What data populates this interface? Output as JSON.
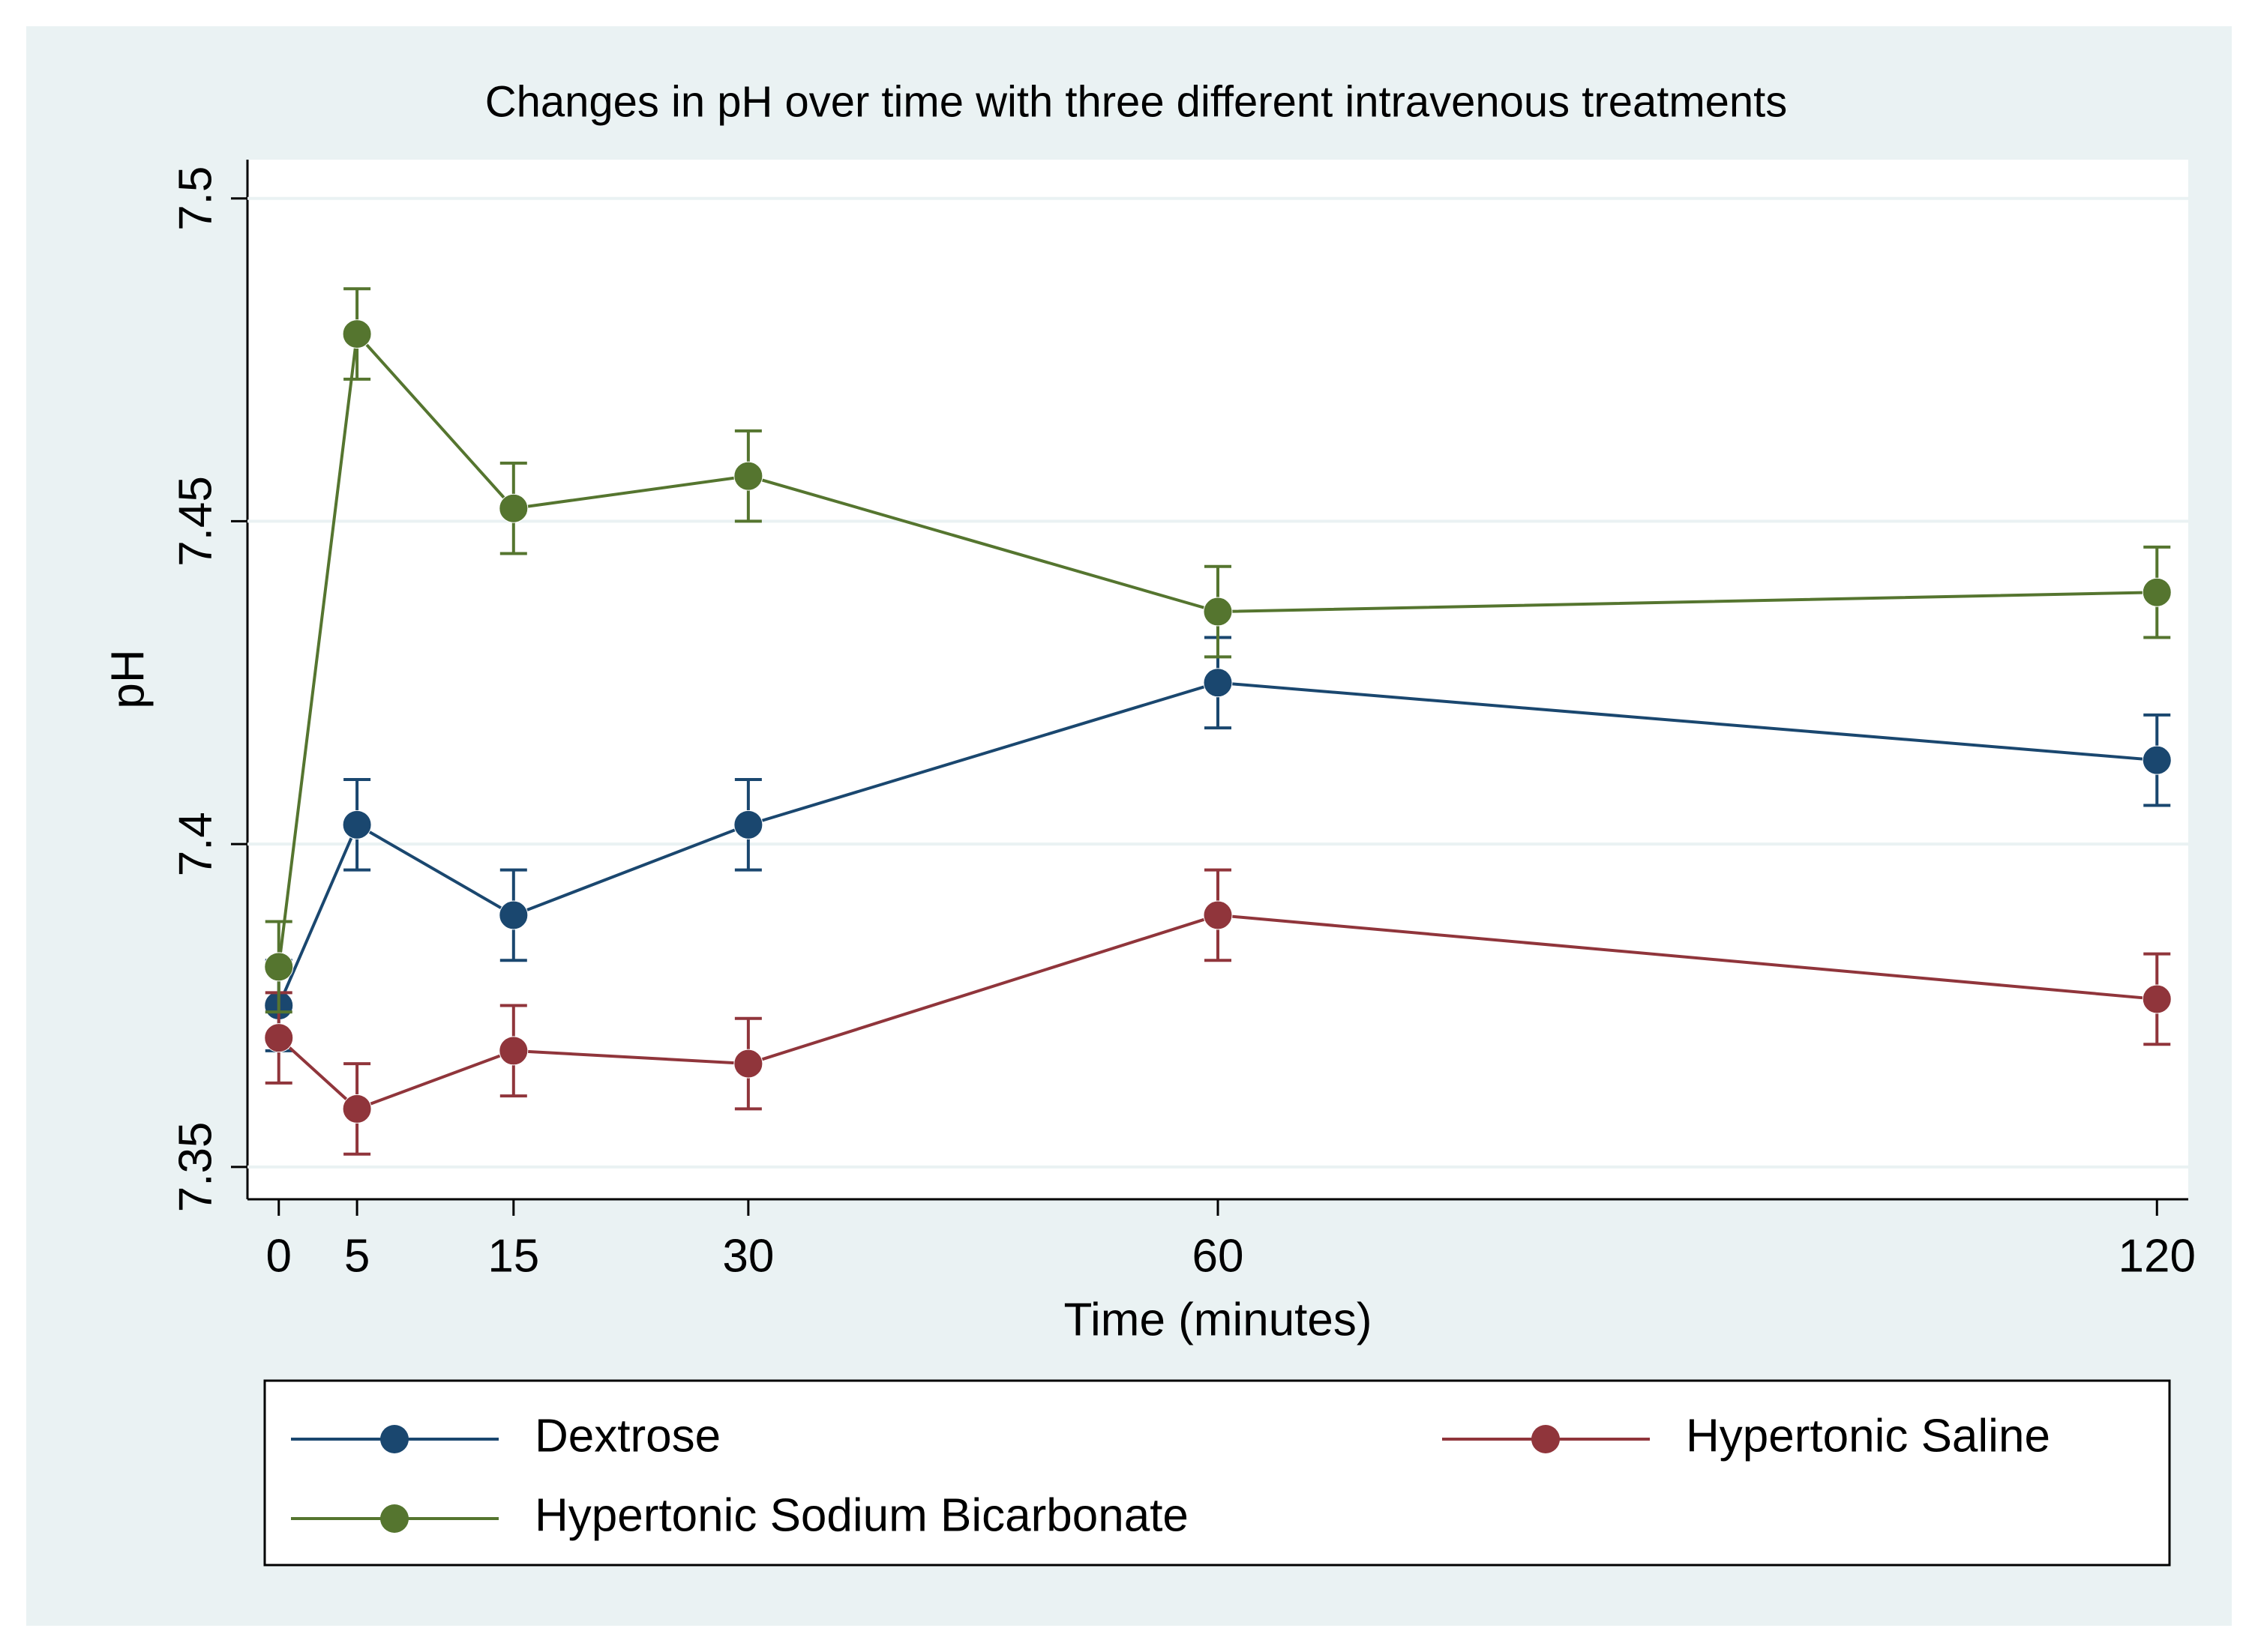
{
  "chart_data": {
    "type": "line",
    "title": "Changes in pH over time with three different intravenous treatments",
    "x_label": "Time (minutes)",
    "y_label": "pH",
    "x": [
      0,
      5,
      15,
      30,
      60,
      120
    ],
    "series": [
      {
        "name": "Dextrose",
        "color": "#1a476f",
        "values": [
          7.375,
          7.403,
          7.389,
          7.403,
          7.425,
          7.413
        ],
        "errors": [
          0.007,
          0.007,
          0.007,
          0.007,
          0.007,
          0.007
        ]
      },
      {
        "name": "Hypertonic Saline",
        "color": "#90353b",
        "values": [
          7.37,
          7.359,
          7.368,
          7.366,
          7.389,
          7.376
        ],
        "errors": [
          0.007,
          0.007,
          0.007,
          0.007,
          0.007,
          0.007
        ]
      },
      {
        "name": "Hypertonic Sodium Bicarbonate",
        "color": "#55752f",
        "values": [
          7.381,
          7.479,
          7.452,
          7.457,
          7.436,
          7.439
        ],
        "errors": [
          0.007,
          0.007,
          0.007,
          0.007,
          0.007,
          0.007
        ]
      }
    ],
    "xlim": [
      -2,
      122
    ],
    "xticks": [
      0,
      5,
      15,
      30,
      60,
      120
    ],
    "ylim": [
      7.345,
      7.506
    ],
    "yticks": [
      7.35,
      7.4,
      7.45,
      7.5
    ],
    "grid": true,
    "legend": "bottom"
  }
}
